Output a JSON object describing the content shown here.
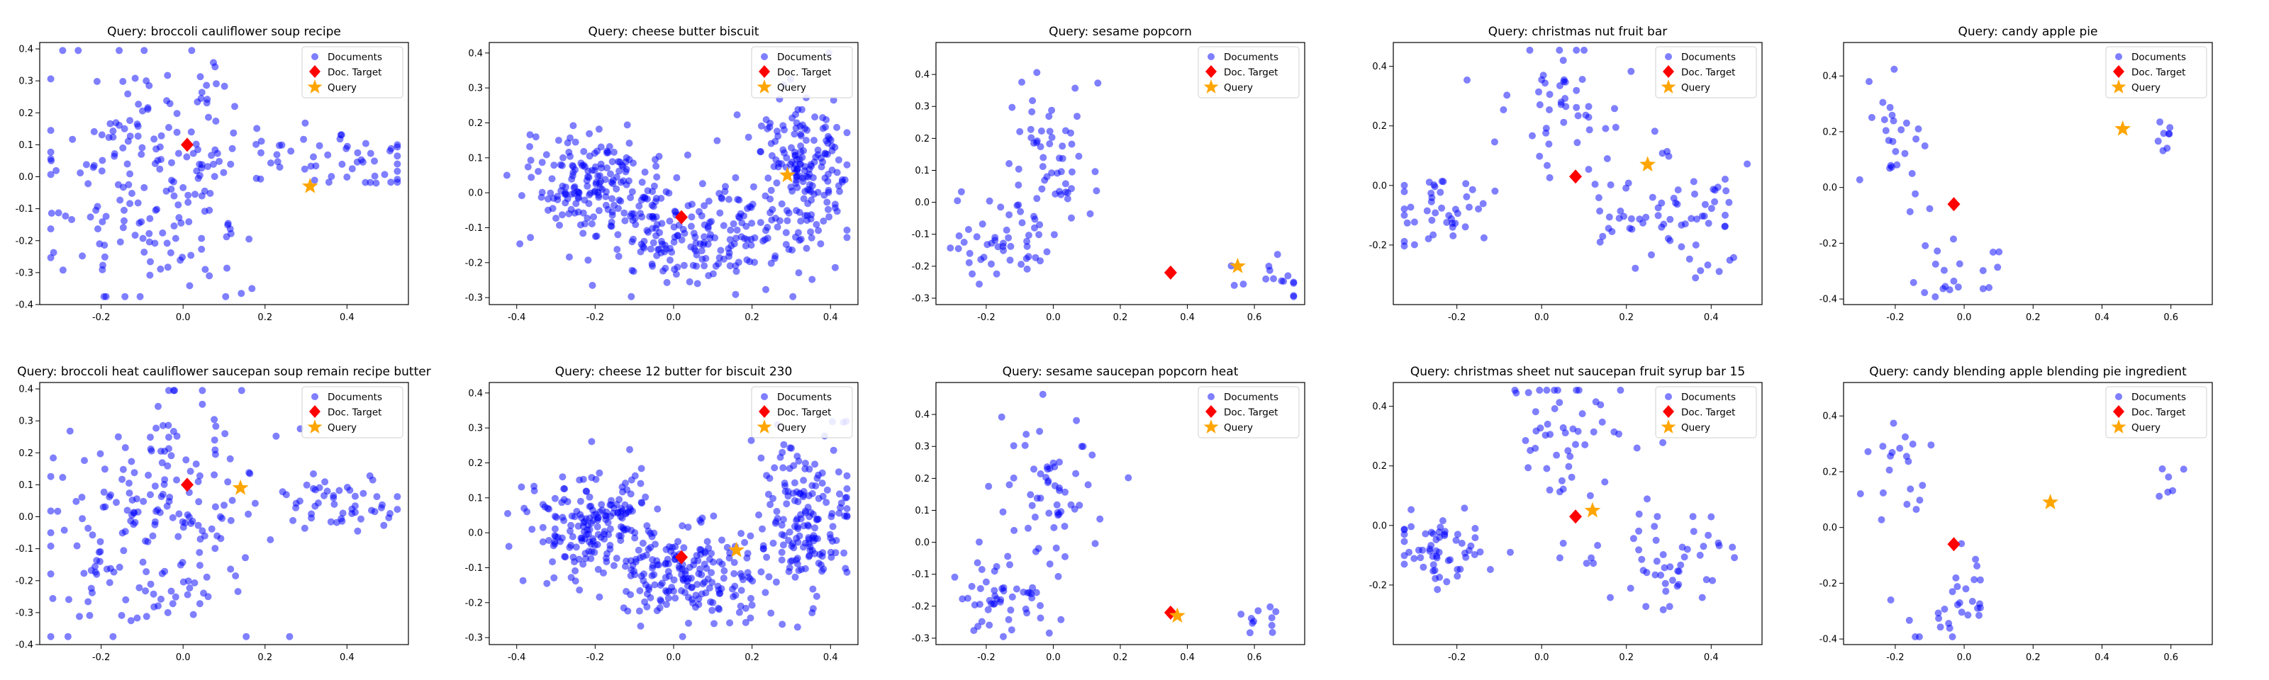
{
  "figure": {
    "colors": {
      "documents": "#0000ff",
      "target": "#ff0000",
      "query": "#ffa500"
    },
    "legend": [
      "Documents",
      "Doc. Target",
      "Query"
    ]
  },
  "chart_data": [
    {
      "type": "scatter",
      "title": "Query: broccoli cauliflower soup recipe",
      "xlim": [
        -0.35,
        0.55
      ],
      "ylim": [
        -0.4,
        0.42
      ],
      "xticks": [
        -0.2,
        0.0,
        0.2,
        0.4
      ],
      "yticks": [
        -0.4,
        -0.3,
        -0.2,
        -0.1,
        0.0,
        0.1,
        0.2,
        0.3,
        0.4
      ],
      "legend_position": "top-right",
      "series": [
        {
          "name": "Documents",
          "marker": "circle",
          "x": [],
          "y": []
        },
        {
          "name": "Doc. Target",
          "marker": "diamond",
          "x": [
            0.01
          ],
          "y": [
            0.1
          ]
        },
        {
          "name": "Query",
          "marker": "star",
          "x": [
            0.31
          ],
          "y": [
            -0.03
          ]
        }
      ],
      "doc_cluster": {
        "n": 250,
        "blobs": [
          [
            -0.1,
            0.0,
            0.12,
            0.18,
            0.55
          ],
          [
            0.05,
            0.1,
            0.1,
            0.15,
            0.2
          ],
          [
            0.4,
            0.05,
            0.09,
            0.05,
            0.2
          ],
          [
            0.0,
            -0.25,
            0.1,
            0.06,
            0.05
          ]
        ]
      }
    },
    {
      "type": "scatter",
      "title": "Query: cheese butter biscuit",
      "xlim": [
        -0.47,
        0.47
      ],
      "ylim": [
        -0.32,
        0.43
      ],
      "xticks": [
        -0.4,
        -0.2,
        0.0,
        0.2,
        0.4
      ],
      "yticks": [
        -0.3,
        -0.2,
        -0.1,
        0.0,
        0.1,
        0.2,
        0.3,
        0.4
      ],
      "legend_position": "top-right",
      "series": [
        {
          "name": "Documents",
          "marker": "circle",
          "x": [],
          "y": []
        },
        {
          "name": "Doc. Target",
          "marker": "diamond",
          "x": [
            0.02
          ],
          "y": [
            -0.07
          ]
        },
        {
          "name": "Query",
          "marker": "star",
          "x": [
            0.29
          ],
          "y": [
            0.05
          ]
        }
      ],
      "doc_cluster": {
        "n": 550,
        "blobs": [
          [
            -0.2,
            0.03,
            0.09,
            0.07,
            0.35
          ],
          [
            0.05,
            -0.12,
            0.12,
            0.07,
            0.35
          ],
          [
            0.33,
            0.05,
            0.06,
            0.12,
            0.3
          ]
        ]
      }
    },
    {
      "type": "scatter",
      "title": "Query: sesame popcorn",
      "xlim": [
        -0.35,
        0.75
      ],
      "ylim": [
        -0.32,
        0.5
      ],
      "xticks": [
        -0.2,
        0.0,
        0.2,
        0.4,
        0.6
      ],
      "yticks": [
        -0.3,
        -0.2,
        -0.1,
        0.0,
        0.1,
        0.2,
        0.3,
        0.4
      ],
      "legend_position": "top-right",
      "series": [
        {
          "name": "Documents",
          "marker": "circle",
          "x": [],
          "y": []
        },
        {
          "name": "Doc. Target",
          "marker": "diamond",
          "x": [
            0.35
          ],
          "y": [
            -0.22
          ]
        },
        {
          "name": "Query",
          "marker": "star",
          "x": [
            0.55
          ],
          "y": [
            -0.2
          ]
        }
      ],
      "doc_cluster": {
        "n": 120,
        "blobs": [
          [
            -0.15,
            -0.15,
            0.07,
            0.07,
            0.4
          ],
          [
            0.0,
            0.15,
            0.07,
            0.12,
            0.5
          ],
          [
            0.65,
            -0.25,
            0.06,
            0.04,
            0.1
          ]
        ]
      }
    },
    {
      "type": "scatter",
      "title": "Query: christmas nut fruit bar",
      "xlim": [
        -0.35,
        0.52
      ],
      "ylim": [
        -0.4,
        0.48
      ],
      "xticks": [
        -0.2,
        0.0,
        0.2,
        0.4
      ],
      "yticks": [
        -0.2,
        0.0,
        0.2,
        0.4
      ],
      "legend_position": "top-right",
      "series": [
        {
          "name": "Documents",
          "marker": "circle",
          "x": [],
          "y": []
        },
        {
          "name": "Doc. Target",
          "marker": "diamond",
          "x": [
            0.08
          ],
          "y": [
            0.03
          ]
        },
        {
          "name": "Query",
          "marker": "star",
          "x": [
            0.25
          ],
          "y": [
            0.07
          ]
        }
      ],
      "doc_cluster": {
        "n": 160,
        "blobs": [
          [
            -0.25,
            -0.08,
            0.06,
            0.06,
            0.3
          ],
          [
            0.05,
            0.3,
            0.07,
            0.12,
            0.3
          ],
          [
            0.3,
            -0.12,
            0.1,
            0.1,
            0.4
          ]
        ]
      }
    },
    {
      "type": "scatter",
      "title": "Query: candy apple pie",
      "xlim": [
        -0.35,
        0.72
      ],
      "ylim": [
        -0.42,
        0.52
      ],
      "xticks": [
        -0.2,
        0.0,
        0.2,
        0.4,
        0.6
      ],
      "yticks": [
        -0.4,
        -0.2,
        0.0,
        0.2,
        0.4
      ],
      "legend_position": "top-right",
      "series": [
        {
          "name": "Documents",
          "marker": "circle",
          "x": [],
          "y": []
        },
        {
          "name": "Doc. Target",
          "marker": "diamond",
          "x": [
            -0.03
          ],
          "y": [
            -0.06
          ]
        },
        {
          "name": "Query",
          "marker": "star",
          "x": [
            0.46
          ],
          "y": [
            0.21
          ]
        }
      ],
      "doc_cluster": {
        "n": 55,
        "blobs": [
          [
            -0.2,
            0.2,
            0.06,
            0.12,
            0.45
          ],
          [
            0.0,
            -0.25,
            0.07,
            0.1,
            0.4
          ],
          [
            0.6,
            0.18,
            0.04,
            0.05,
            0.15
          ]
        ]
      }
    },
    {
      "type": "scatter",
      "title": "Query: broccoli heat cauliflower saucepan soup remain recipe butter",
      "xlim": [
        -0.35,
        0.55
      ],
      "ylim": [
        -0.4,
        0.42
      ],
      "xticks": [
        -0.2,
        0.0,
        0.2,
        0.4
      ],
      "yticks": [
        -0.4,
        -0.3,
        -0.2,
        -0.1,
        0.0,
        0.1,
        0.2,
        0.3,
        0.4
      ],
      "legend_position": "top-right",
      "series": [
        {
          "name": "Documents",
          "marker": "circle",
          "x": [],
          "y": []
        },
        {
          "name": "Doc. Target",
          "marker": "diamond",
          "x": [
            0.01
          ],
          "y": [
            0.1
          ]
        },
        {
          "name": "Query",
          "marker": "star",
          "x": [
            0.14
          ],
          "y": [
            0.09
          ]
        }
      ],
      "doc_cluster": {
        "n": 250,
        "blobs": [
          [
            -0.1,
            0.0,
            0.12,
            0.18,
            0.55
          ],
          [
            0.05,
            0.1,
            0.1,
            0.15,
            0.2
          ],
          [
            0.4,
            0.05,
            0.09,
            0.05,
            0.2
          ],
          [
            0.0,
            -0.25,
            0.1,
            0.06,
            0.05
          ]
        ]
      }
    },
    {
      "type": "scatter",
      "title": "Query: cheese 12 butter for biscuit 230",
      "xlim": [
        -0.47,
        0.47
      ],
      "ylim": [
        -0.32,
        0.43
      ],
      "xticks": [
        -0.4,
        -0.2,
        0.0,
        0.2,
        0.4
      ],
      "yticks": [
        -0.3,
        -0.2,
        -0.1,
        0.0,
        0.1,
        0.2,
        0.3,
        0.4
      ],
      "legend_position": "top-right",
      "series": [
        {
          "name": "Documents",
          "marker": "circle",
          "x": [],
          "y": []
        },
        {
          "name": "Doc. Target",
          "marker": "diamond",
          "x": [
            0.02
          ],
          "y": [
            -0.07
          ]
        },
        {
          "name": "Query",
          "marker": "star",
          "x": [
            0.16
          ],
          "y": [
            -0.05
          ]
        }
      ],
      "doc_cluster": {
        "n": 550,
        "blobs": [
          [
            -0.2,
            0.03,
            0.09,
            0.07,
            0.35
          ],
          [
            0.05,
            -0.12,
            0.12,
            0.07,
            0.35
          ],
          [
            0.33,
            0.05,
            0.06,
            0.12,
            0.3
          ]
        ]
      }
    },
    {
      "type": "scatter",
      "title": "Query: sesame saucepan popcorn heat",
      "xlim": [
        -0.35,
        0.75
      ],
      "ylim": [
        -0.32,
        0.5
      ],
      "xticks": [
        -0.2,
        0.0,
        0.2,
        0.4,
        0.6
      ],
      "yticks": [
        -0.3,
        -0.2,
        -0.1,
        0.0,
        0.1,
        0.2,
        0.3,
        0.4
      ],
      "legend_position": "top-right",
      "series": [
        {
          "name": "Documents",
          "marker": "circle",
          "x": [],
          "y": []
        },
        {
          "name": "Doc. Target",
          "marker": "diamond",
          "x": [
            0.35
          ],
          "y": [
            -0.22
          ]
        },
        {
          "name": "Query",
          "marker": "star",
          "x": [
            0.37
          ],
          "y": [
            -0.23
          ]
        }
      ],
      "doc_cluster": {
        "n": 120,
        "blobs": [
          [
            -0.15,
            -0.15,
            0.07,
            0.07,
            0.4
          ],
          [
            0.0,
            0.15,
            0.07,
            0.12,
            0.5
          ],
          [
            0.65,
            -0.25,
            0.06,
            0.04,
            0.1
          ]
        ]
      }
    },
    {
      "type": "scatter",
      "title": "Query: christmas sheet nut saucepan fruit syrup bar 15",
      "xlim": [
        -0.35,
        0.52
      ],
      "ylim": [
        -0.4,
        0.48
      ],
      "xticks": [
        -0.2,
        0.0,
        0.2,
        0.4
      ],
      "yticks": [
        -0.2,
        0.0,
        0.2,
        0.4
      ],
      "legend_position": "top-right",
      "series": [
        {
          "name": "Documents",
          "marker": "circle",
          "x": [],
          "y": []
        },
        {
          "name": "Doc. Target",
          "marker": "diamond",
          "x": [
            0.08
          ],
          "y": [
            0.03
          ]
        },
        {
          "name": "Query",
          "marker": "star",
          "x": [
            0.12
          ],
          "y": [
            0.05
          ]
        }
      ],
      "doc_cluster": {
        "n": 160,
        "blobs": [
          [
            -0.25,
            -0.08,
            0.06,
            0.06,
            0.3
          ],
          [
            0.05,
            0.3,
            0.07,
            0.12,
            0.3
          ],
          [
            0.3,
            -0.12,
            0.1,
            0.1,
            0.4
          ]
        ]
      }
    },
    {
      "type": "scatter",
      "title": "Query: candy blending apple blending pie ingredient",
      "xlim": [
        -0.35,
        0.72
      ],
      "ylim": [
        -0.42,
        0.52
      ],
      "xticks": [
        -0.2,
        0.0,
        0.2,
        0.4,
        0.6
      ],
      "yticks": [
        -0.4,
        -0.2,
        0.0,
        0.2,
        0.4
      ],
      "legend_position": "top-right",
      "series": [
        {
          "name": "Documents",
          "marker": "circle",
          "x": [],
          "y": []
        },
        {
          "name": "Doc. Target",
          "marker": "diamond",
          "x": [
            -0.03
          ],
          "y": [
            -0.06
          ]
        },
        {
          "name": "Query",
          "marker": "star",
          "x": [
            0.25
          ],
          "y": [
            0.09
          ]
        }
      ],
      "doc_cluster": {
        "n": 55,
        "blobs": [
          [
            -0.2,
            0.2,
            0.06,
            0.12,
            0.45
          ],
          [
            0.0,
            -0.25,
            0.07,
            0.1,
            0.4
          ],
          [
            0.6,
            0.18,
            0.04,
            0.05,
            0.15
          ]
        ]
      }
    }
  ]
}
